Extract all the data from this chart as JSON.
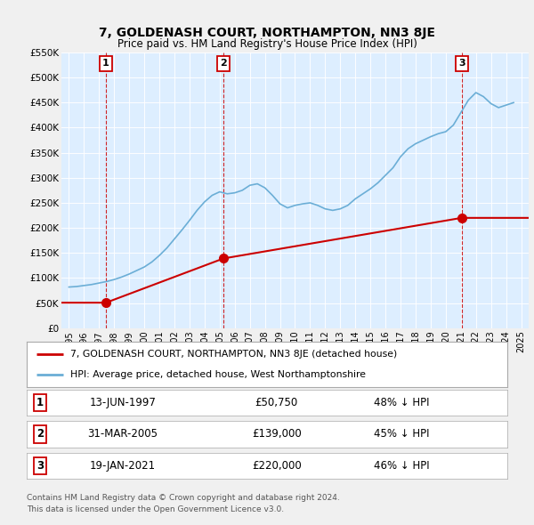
{
  "title": "7, GOLDENASH COURT, NORTHAMPTON, NN3 8JE",
  "subtitle": "Price paid vs. HM Land Registry's House Price Index (HPI)",
  "legend_line1": "7, GOLDENASH COURT, NORTHAMPTON, NN3 8JE (detached house)",
  "legend_line2": "HPI: Average price, detached house, West Northamptonshire",
  "footer1": "Contains HM Land Registry data © Crown copyright and database right 2024.",
  "footer2": "This data is licensed under the Open Government Licence v3.0.",
  "table_rows": [
    {
      "num": "1",
      "date": "13-JUN-1997",
      "price": "£50,750",
      "pct": "48% ↓ HPI"
    },
    {
      "num": "2",
      "date": "31-MAR-2005",
      "price": "£139,000",
      "pct": "45% ↓ HPI"
    },
    {
      "num": "3",
      "date": "19-JAN-2021",
      "price": "£220,000",
      "pct": "46% ↓ HPI"
    }
  ],
  "sale_points": [
    {
      "year": 1997.45,
      "price": 50750
    },
    {
      "year": 2005.25,
      "price": 139000
    },
    {
      "year": 2021.05,
      "price": 220000
    }
  ],
  "sale_labels": [
    "1",
    "2",
    "3"
  ],
  "hpi_color": "#6baed6",
  "price_color": "#cc0000",
  "dashed_color": "#cc0000",
  "background_color": "#ddeeff",
  "fig_background": "#f0f0f0",
  "ylim": [
    0,
    550000
  ],
  "xlim_start": 1994.5,
  "xlim_end": 2025.5,
  "yticks": [
    0,
    50000,
    100000,
    150000,
    200000,
    250000,
    300000,
    350000,
    400000,
    450000,
    500000,
    550000
  ],
  "ytick_labels": [
    "£0",
    "£50K",
    "£100K",
    "£150K",
    "£200K",
    "£250K",
    "£300K",
    "£350K",
    "£400K",
    "£450K",
    "£500K",
    "£550K"
  ],
  "xticks": [
    1995,
    1996,
    1997,
    1998,
    1999,
    2000,
    2001,
    2002,
    2003,
    2004,
    2005,
    2006,
    2007,
    2008,
    2009,
    2010,
    2011,
    2012,
    2013,
    2014,
    2015,
    2016,
    2017,
    2018,
    2019,
    2020,
    2021,
    2022,
    2023,
    2024,
    2025
  ],
  "hpi_years": [
    1995,
    1995.5,
    1996,
    1996.5,
    1997,
    1997.5,
    1998,
    1998.5,
    1999,
    1999.5,
    2000,
    2000.5,
    2001,
    2001.5,
    2002,
    2002.5,
    2003,
    2003.5,
    2004,
    2004.5,
    2005,
    2005.5,
    2006,
    2006.5,
    2007,
    2007.5,
    2008,
    2008.5,
    2009,
    2009.5,
    2010,
    2010.5,
    2011,
    2011.5,
    2012,
    2012.5,
    2013,
    2013.5,
    2014,
    2014.5,
    2015,
    2015.5,
    2016,
    2016.5,
    2017,
    2017.5,
    2018,
    2018.5,
    2019,
    2019.5,
    2020,
    2020.5,
    2021,
    2021.5,
    2022,
    2022.5,
    2023,
    2023.5,
    2024,
    2024.5
  ],
  "hpi_values": [
    82000,
    83000,
    85000,
    87000,
    90000,
    93000,
    97000,
    102000,
    108000,
    115000,
    122000,
    132000,
    145000,
    160000,
    178000,
    196000,
    215000,
    235000,
    252000,
    265000,
    272000,
    268000,
    270000,
    275000,
    285000,
    288000,
    280000,
    265000,
    248000,
    240000,
    245000,
    248000,
    250000,
    245000,
    238000,
    235000,
    238000,
    245000,
    258000,
    268000,
    278000,
    290000,
    305000,
    320000,
    342000,
    358000,
    368000,
    375000,
    382000,
    388000,
    392000,
    405000,
    430000,
    455000,
    470000,
    462000,
    448000,
    440000,
    445000,
    450000
  ],
  "price_x": [
    1994.5,
    1997.45,
    1997.45,
    2005.25,
    2005.25,
    2021.05,
    2021.05,
    2025.5
  ],
  "price_y": [
    50750,
    50750,
    50750,
    139000,
    139000,
    220000,
    220000,
    220000
  ]
}
